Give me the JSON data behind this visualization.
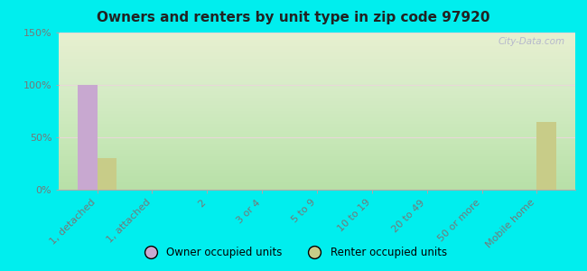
{
  "title": "Owners and renters by unit type in zip code 97920",
  "categories": [
    "1, detached",
    "1, attached",
    "2",
    "3 or 4",
    "5 to 9",
    "10 to 19",
    "20 to 49",
    "50 or more",
    "Mobile home"
  ],
  "owner_values": [
    100,
    0,
    0,
    0,
    0,
    0,
    0,
    0,
    0
  ],
  "renter_values": [
    30,
    0,
    0,
    0,
    0,
    0,
    0,
    0,
    65
  ],
  "owner_color": "#c8a8d0",
  "renter_color": "#c8cc88",
  "background_fig": "#00eeee",
  "ylim": [
    0,
    150
  ],
  "yticks": [
    0,
    50,
    100,
    150
  ],
  "ytick_labels": [
    "0%",
    "50%",
    "100%",
    "150%"
  ],
  "bar_width": 0.35,
  "legend_owner": "Owner occupied units",
  "legend_renter": "Renter occupied units",
  "watermark": "City-Data.com",
  "tick_color": "#777777",
  "title_color": "#222222",
  "grid_color": "#e8d8d8"
}
